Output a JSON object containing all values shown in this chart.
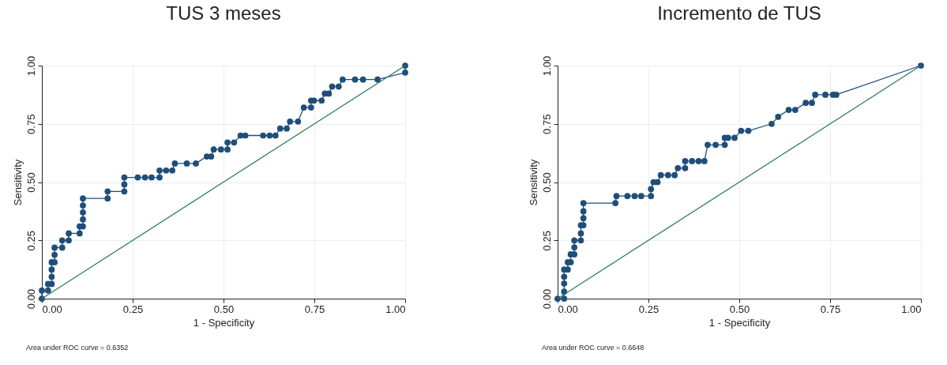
{
  "chart_data": [
    {
      "type": "line",
      "title": "TUS 3 meses",
      "xlabel": "1 - Specificity",
      "ylabel": "Sensitivity",
      "grid": true,
      "xlim": [
        0,
        1
      ],
      "ylim": [
        0,
        1
      ],
      "xticks": [
        {
          "value": 0,
          "label": "0.00"
        },
        {
          "value": 0.25,
          "label": "0.25"
        },
        {
          "value": 0.5,
          "label": "0.50"
        },
        {
          "value": 0.75,
          "label": "0.75"
        },
        {
          "value": 1,
          "label": "1.00"
        }
      ],
      "yticks": [
        {
          "value": 0,
          "label": "0.00"
        },
        {
          "value": 0.25,
          "label": "0.25"
        },
        {
          "value": 0.5,
          "label": "0.50"
        },
        {
          "value": 0.75,
          "label": "0.75"
        },
        {
          "value": 1,
          "label": "1.00"
        }
      ],
      "annotations": [
        "Area under ROC curve = 0.6352"
      ],
      "series": [
        {
          "marker": "circle",
          "color": "#1f4e79",
          "x": [
            0,
            0,
            0.017,
            0.017,
            0.027,
            0.027,
            0.027,
            0.027,
            0.035,
            0.035,
            0.035,
            0.056,
            0.056,
            0.074,
            0.074,
            0.104,
            0.104,
            0.113,
            0.113,
            0.113,
            0.113,
            0.113,
            0.181,
            0.181,
            0.227,
            0.227,
            0.227,
            0.264,
            0.284,
            0.302,
            0.324,
            0.324,
            0.342,
            0.359,
            0.366,
            0.399,
            0.424,
            0.454,
            0.466,
            0.473,
            0.493,
            0.511,
            0.511,
            0.529,
            0.547,
            0.56,
            0.609,
            0.627,
            0.643,
            0.656,
            0.674,
            0.683,
            0.705,
            0.721,
            0.741,
            0.741,
            0.749,
            0.77,
            0.779,
            0.79,
            0.799,
            0.817,
            0.828,
            0.862,
            0.884,
            0.924,
            1,
            1
          ],
          "values": [
            0,
            0.035,
            0.035,
            0.063,
            0.063,
            0.094,
            0.125,
            0.156,
            0.156,
            0.188,
            0.219,
            0.219,
            0.25,
            0.25,
            0.28,
            0.28,
            0.31,
            0.31,
            0.34,
            0.37,
            0.4,
            0.43,
            0.43,
            0.46,
            0.46,
            0.49,
            0.52,
            0.52,
            0.52,
            0.52,
            0.52,
            0.55,
            0.55,
            0.55,
            0.58,
            0.58,
            0.58,
            0.61,
            0.61,
            0.64,
            0.64,
            0.64,
            0.67,
            0.67,
            0.7,
            0.7,
            0.7,
            0.7,
            0.7,
            0.73,
            0.73,
            0.76,
            0.76,
            0.82,
            0.82,
            0.85,
            0.85,
            0.85,
            0.88,
            0.88,
            0.91,
            0.91,
            0.94,
            0.94,
            0.94,
            0.94,
            0.97,
            1
          ]
        },
        {
          "marker": "none",
          "color": "#2e7d5b",
          "x": [
            0,
            1
          ],
          "values": [
            0,
            1
          ]
        }
      ]
    },
    {
      "type": "line",
      "title": "Incremento de TUS",
      "xlabel": "1 - Specificity",
      "ylabel": "Sensitivity",
      "grid": true,
      "xlim": [
        0,
        1
      ],
      "ylim": [
        0,
        1
      ],
      "xticks": [
        {
          "value": 0,
          "label": "0.00"
        },
        {
          "value": 0.25,
          "label": "0.25"
        },
        {
          "value": 0.5,
          "label": "0.50"
        },
        {
          "value": 0.75,
          "label": "0.75"
        },
        {
          "value": 1,
          "label": "1.00"
        }
      ],
      "yticks": [
        {
          "value": 0,
          "label": "0.00"
        },
        {
          "value": 0.25,
          "label": "0.25"
        },
        {
          "value": 0.5,
          "label": "0.50"
        },
        {
          "value": 0.75,
          "label": "0.75"
        },
        {
          "value": 1,
          "label": "1.00"
        }
      ],
      "annotations": [
        "Area under ROC curve = 0.6648"
      ],
      "series": [
        {
          "marker": "circle",
          "color": "#1f4e79",
          "x": [
            0,
            0.018,
            0.018,
            0.018,
            0.018,
            0.018,
            0.028,
            0.028,
            0.036,
            0.036,
            0.046,
            0.046,
            0.046,
            0.064,
            0.064,
            0.064,
            0.071,
            0.071,
            0.071,
            0.071,
            0.159,
            0.162,
            0.192,
            0.212,
            0.23,
            0.257,
            0.257,
            0.264,
            0.275,
            0.284,
            0.304,
            0.322,
            0.331,
            0.351,
            0.351,
            0.37,
            0.388,
            0.404,
            0.413,
            0.435,
            0.46,
            0.46,
            0.469,
            0.487,
            0.505,
            0.525,
            0.589,
            0.607,
            0.636,
            0.654,
            0.683,
            0.7,
            0.709,
            0.737,
            0.758,
            0.767,
            1
          ],
          "values": [
            0,
            0,
            0.03,
            0.065,
            0.094,
            0.125,
            0.125,
            0.156,
            0.156,
            0.19,
            0.19,
            0.22,
            0.25,
            0.25,
            0.28,
            0.315,
            0.315,
            0.345,
            0.375,
            0.41,
            0.41,
            0.44,
            0.44,
            0.44,
            0.44,
            0.44,
            0.47,
            0.5,
            0.5,
            0.53,
            0.53,
            0.53,
            0.56,
            0.56,
            0.59,
            0.59,
            0.59,
            0.59,
            0.66,
            0.66,
            0.66,
            0.69,
            0.69,
            0.69,
            0.72,
            0.72,
            0.75,
            0.78,
            0.81,
            0.81,
            0.84,
            0.84,
            0.875,
            0.875,
            0.875,
            0.875,
            1
          ]
        },
        {
          "marker": "none",
          "color": "#2e7d5b",
          "x": [
            0,
            1
          ],
          "values": [
            0,
            1
          ]
        }
      ]
    }
  ]
}
